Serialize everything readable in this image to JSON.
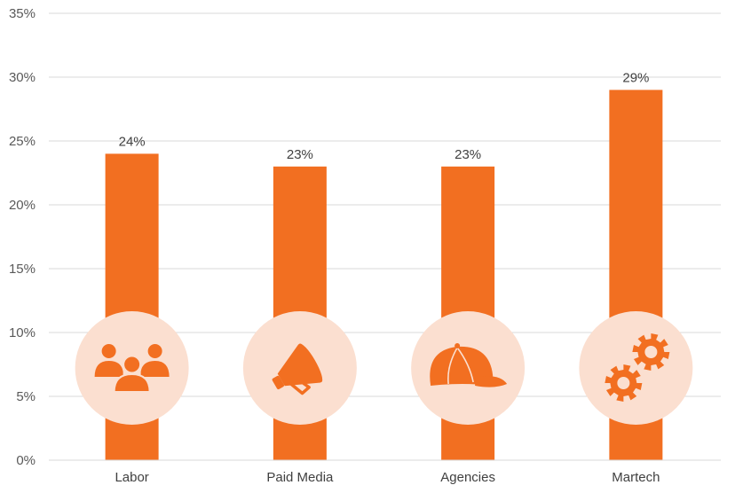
{
  "chart_data": {
    "type": "bar",
    "categories": [
      "Labor",
      "Paid Media",
      "Agencies",
      "Martech"
    ],
    "values": [
      24,
      23,
      23,
      29
    ],
    "data_labels": [
      "24%",
      "23%",
      "23%",
      "29%"
    ],
    "icons": [
      "people-group-icon",
      "megaphone-icon",
      "baseball-cap-icon",
      "gears-icon"
    ],
    "ylim": [
      0,
      35
    ],
    "yticks": [
      0,
      5,
      10,
      15,
      20,
      25,
      30,
      35
    ],
    "ytick_labels": [
      "0%",
      "5%",
      "10%",
      "15%",
      "20%",
      "25%",
      "30%",
      "35%"
    ],
    "grid": true,
    "legend": "none",
    "colors": {
      "bar": "#f26f21",
      "icon_circle": "#fbdfd0",
      "icon": "#f26f21",
      "gridline": "#d9d9d9"
    }
  }
}
